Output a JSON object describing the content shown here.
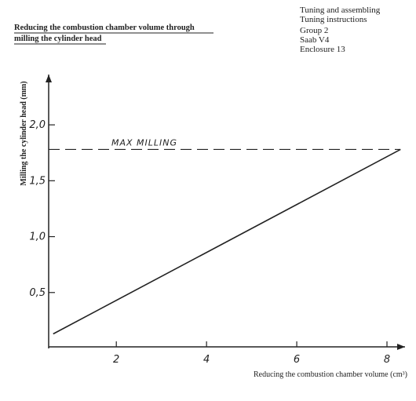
{
  "header": {
    "lines": [
      "Tuning and assembling",
      "Tuning instructions",
      "Group 2",
      "Saab V4",
      "Enclosure 13"
    ]
  },
  "chart_data": {
    "type": "line",
    "title": [
      "Reducing the combustion chamber volume through",
      "milling the cylinder head"
    ],
    "x_label": "Reducing the combustion chamber volume (cm³)",
    "y_label": "Milling the cylinder head (mm)",
    "x": [
      0.6,
      8.3
    ],
    "values": [
      0.13,
      1.78
    ],
    "color": "#222",
    "reference": {
      "value": 1.78,
      "label": "MAX MILLING"
    },
    "xlim": [
      0.5,
      8.4
    ],
    "ylim": [
      0,
      2.45
    ],
    "xticks": [
      2,
      4,
      6,
      8
    ],
    "yticks": [
      {
        "value": 0.5,
        "label": "0,5"
      },
      {
        "value": 1.0,
        "label": "1,0"
      },
      {
        "value": 1.5,
        "label": "1,5"
      },
      {
        "value": 2.0,
        "label": "2,0"
      }
    ]
  }
}
